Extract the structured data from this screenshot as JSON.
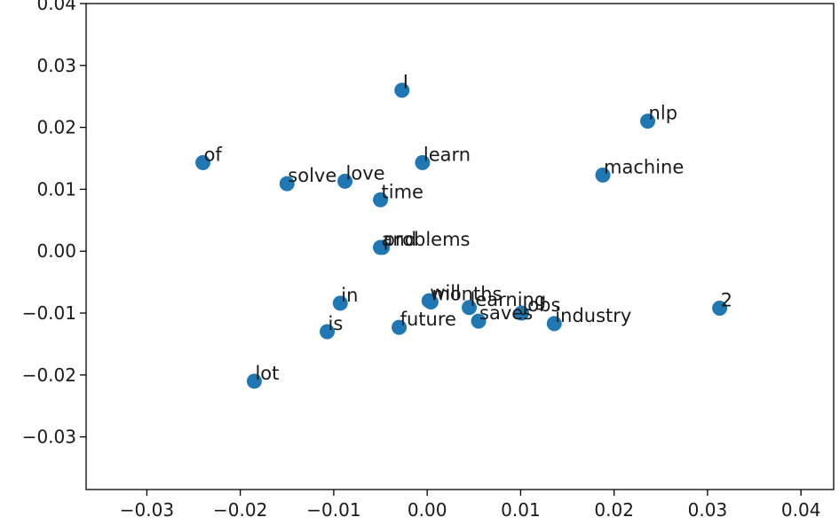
{
  "chart_data": {
    "type": "scatter",
    "title": "",
    "xlabel": "",
    "ylabel": "",
    "xlim": [
      -0.0365,
      0.0435
    ],
    "ylim": [
      -0.0385,
      0.04
    ],
    "grid": false,
    "x_ticks": [
      -0.03,
      -0.02,
      -0.01,
      0.0,
      0.01,
      0.02,
      0.03,
      0.04
    ],
    "x_tick_labels": [
      "−0.03",
      "−0.02",
      "−0.01",
      "0.00",
      "0.01",
      "0.02",
      "0.03",
      "0.04"
    ],
    "y_ticks": [
      0.04,
      0.03,
      0.02,
      0.01,
      0.0,
      -0.01,
      -0.02,
      -0.03
    ],
    "y_tick_labels": [
      "0.04",
      "0.03",
      "0.02",
      "0.01",
      "0.00",
      "−0.01",
      "−0.02",
      "−0.03"
    ],
    "marker_color": "#1f77b4",
    "points": [
      {
        "label": "I",
        "x": -0.0027,
        "y": 0.026
      },
      {
        "label": "nlp",
        "x": 0.0236,
        "y": 0.021
      },
      {
        "label": "of",
        "x": -0.024,
        "y": 0.0143
      },
      {
        "label": "learn",
        "x": -0.0005,
        "y": 0.0143
      },
      {
        "label": "machine",
        "x": 0.0188,
        "y": 0.0123
      },
      {
        "label": "solve",
        "x": -0.015,
        "y": 0.0109
      },
      {
        "label": "love",
        "x": -0.0088,
        "y": 0.0113
      },
      {
        "label": "time",
        "x": -0.005,
        "y": 0.0083
      },
      {
        "label": "and",
        "x": -0.005,
        "y": 0.0006
      },
      {
        "label": "problems",
        "x": -0.0048,
        "y": 0.0006
      },
      {
        "label": "in",
        "x": -0.0093,
        "y": -0.0084
      },
      {
        "label": "will",
        "x": 0.0002,
        "y": -0.008
      },
      {
        "label": "months",
        "x": 0.0004,
        "y": -0.0082
      },
      {
        "label": "learning",
        "x": 0.0045,
        "y": -0.0091
      },
      {
        "label": "saves",
        "x": 0.0055,
        "y": -0.0113
      },
      {
        "label": "jobs",
        "x": 0.0101,
        "y": -0.01
      },
      {
        "label": "industry",
        "x": 0.0136,
        "y": -0.0117
      },
      {
        "label": "future",
        "x": -0.003,
        "y": -0.0123
      },
      {
        "label": "is",
        "x": -0.0107,
        "y": -0.013
      },
      {
        "label": "2",
        "x": 0.0313,
        "y": -0.0092
      },
      {
        "label": "lot",
        "x": -0.0185,
        "y": -0.021
      }
    ]
  }
}
